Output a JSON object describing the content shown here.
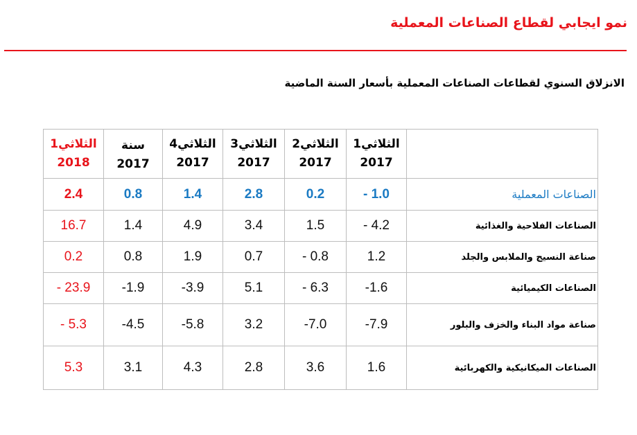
{
  "title": "نمو ايجابي لقطاع الصناعات المعملية",
  "subtitle": "الانزلاق السنوي لقطاعات الصناعات المعملية بأسعار السنة الماضية",
  "colors": {
    "accent_red": "#e8141b",
    "accent_blue": "#1a7ac3"
  },
  "table": {
    "headers": [
      {
        "line1": "الثلاثي1",
        "line2": "2017"
      },
      {
        "line1": "الثلاثي2",
        "line2": "2017"
      },
      {
        "line1": "الثلاثي3",
        "line2": "2017"
      },
      {
        "line1": "الثلاثي4",
        "line2": "2017"
      },
      {
        "line1": "سنة 2017",
        "line2": ""
      },
      {
        "line1": "الثلاثي1",
        "line2": "2018"
      }
    ],
    "rows": [
      {
        "label": "الصناعات المعملية",
        "values": [
          "- 1.0",
          "0.2",
          "2.8",
          "1.4",
          "0.8",
          "2.4"
        ]
      },
      {
        "label": "الصناعات الفلاحية والغذائية",
        "values": [
          "- 4.2",
          "1.5",
          "3.4",
          "4.9",
          "1.4",
          "16.7"
        ]
      },
      {
        "label": "صناعة النسيج والملابس والجلد",
        "values": [
          "1.2",
          "- 0.8",
          "0.7",
          "1.9",
          "0.8",
          "0.2"
        ]
      },
      {
        "label": "الصناعات الكيميائية",
        "values": [
          "-1.6",
          "- 6.3",
          "5.1",
          "-3.9",
          "-1.9",
          "- 23.9"
        ]
      },
      {
        "label": "صناعة مواد البناء والخزف والبلور",
        "values": [
          "-7.9",
          "-7.0",
          "3.2",
          "-5.8",
          "-4.5",
          "- 5.3"
        ]
      },
      {
        "label": "الصناعات الميكانيكية والكهربائية",
        "values": [
          "1.6",
          "3.6",
          "2.8",
          "4.3",
          "3.1",
          "5.3"
        ]
      }
    ]
  }
}
